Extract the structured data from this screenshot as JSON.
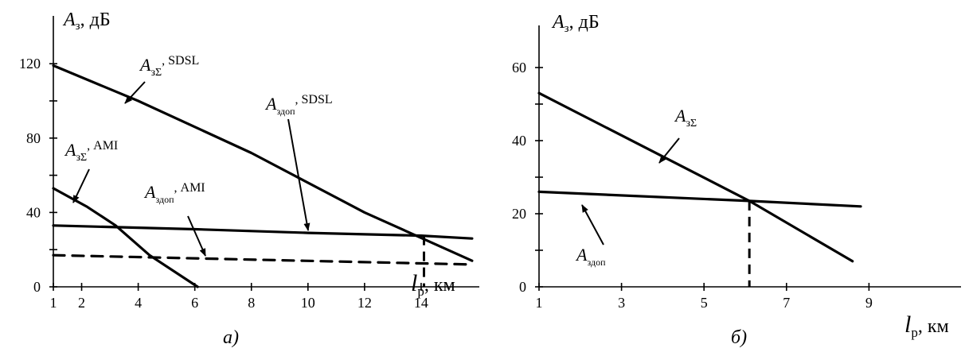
{
  "chart_data": [
    {
      "type": "line",
      "panel_label": "а)",
      "ylabel": {
        "main": "A",
        "sub": "з",
        "unit": ", дБ"
      },
      "xlabel": {
        "main": "l",
        "sub": "р",
        "unit": ", км"
      },
      "x_ticks": [
        1,
        2,
        4,
        6,
        8,
        10,
        12,
        14
      ],
      "y_ticks": [
        0,
        40,
        80,
        120
      ],
      "xlim": [
        1,
        16
      ],
      "ylim": [
        0,
        150
      ],
      "series": [
        {
          "key": "sigma_sdsl",
          "style": "solid",
          "x": [
            1,
            4,
            8,
            12,
            15.8
          ],
          "y": [
            119,
            100,
            72,
            40,
            14
          ]
        },
        {
          "key": "dop_sdsl",
          "style": "solid",
          "x": [
            1,
            6,
            10,
            14,
            15.8
          ],
          "y": [
            33,
            31,
            29,
            27.5,
            26
          ]
        },
        {
          "key": "sigma_ami",
          "style": "solid",
          "x": [
            1,
            2.2,
            3.2,
            4.4,
            6.1
          ],
          "y": [
            53,
            43,
            33,
            17,
            0
          ]
        },
        {
          "key": "dop_ami",
          "style": "dashed",
          "x": [
            1,
            15.8
          ],
          "y": [
            17,
            12
          ]
        }
      ],
      "annotations": [
        {
          "key": "sigma_sdsl",
          "main": "A",
          "sub": "зΣ",
          "suffix": ", SDSL"
        },
        {
          "key": "dop_sdsl",
          "main": "A",
          "sub": "здоп",
          "suffix": ", SDSL"
        },
        {
          "key": "sigma_ami",
          "main": "A",
          "sub": "зΣ",
          "suffix": ", AMI"
        },
        {
          "key": "dop_ami",
          "main": "A",
          "sub": "здоп",
          "suffix": ", AMI"
        }
      ],
      "marker": {
        "x": 14.1,
        "y": 27.5
      }
    },
    {
      "type": "line",
      "panel_label": "б)",
      "ylabel": {
        "main": "A",
        "sub": "з",
        "unit": ", дБ"
      },
      "xlabel": {
        "main": "l",
        "sub": "р",
        "unit": ", км"
      },
      "x_ticks": [
        1,
        3,
        5,
        7,
        9
      ],
      "y_ticks": [
        0,
        20,
        40,
        60
      ],
      "xlim": [
        1,
        11
      ],
      "ylim": [
        0,
        75
      ],
      "series": [
        {
          "key": "sigma",
          "style": "solid",
          "x": [
            1,
            6.1,
            8.6
          ],
          "y": [
            53,
            23.5,
            7
          ]
        },
        {
          "key": "dop",
          "style": "solid",
          "x": [
            1,
            6.1,
            8.8
          ],
          "y": [
            26,
            23.5,
            22
          ]
        }
      ],
      "annotations": [
        {
          "key": "sigma",
          "main": "A",
          "sub": "зΣ",
          "suffix": ""
        },
        {
          "key": "dop",
          "main": "A",
          "sub": "здоп",
          "suffix": ""
        }
      ],
      "marker": {
        "x": 6.1,
        "y": 23.5
      }
    }
  ]
}
